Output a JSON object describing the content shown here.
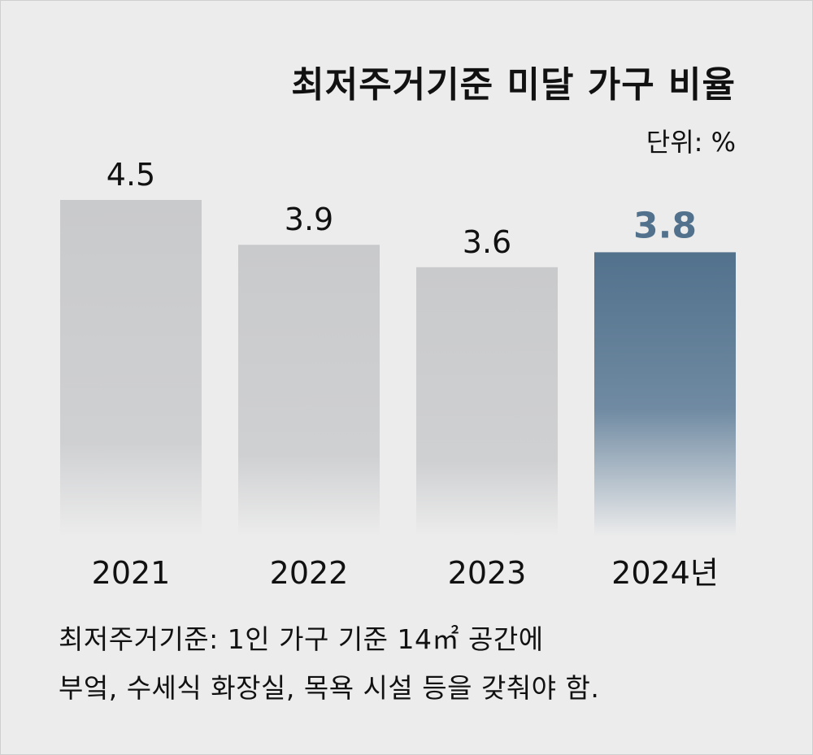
{
  "chart_data": {
    "type": "bar",
    "title": "최저주거기준 미달 가구 비율",
    "unit_label": "단위: %",
    "categories": [
      "2021",
      "2022",
      "2023",
      "2024년"
    ],
    "values": [
      4.5,
      3.9,
      3.6,
      3.8
    ],
    "value_labels": [
      "4.5",
      "3.9",
      "3.6",
      "3.8"
    ],
    "highlight_index": 3,
    "colors": {
      "bar": "#c9cacc",
      "highlight": "#52718c",
      "highlight_label": "#52718c",
      "label": "#111111"
    }
  },
  "notes": [
    "최저주거기준: 1인 가구 기준 14㎡ 공간에",
    "부엌, 수세식 화장실, 목욕 시설 등을 갖춰야 함."
  ]
}
